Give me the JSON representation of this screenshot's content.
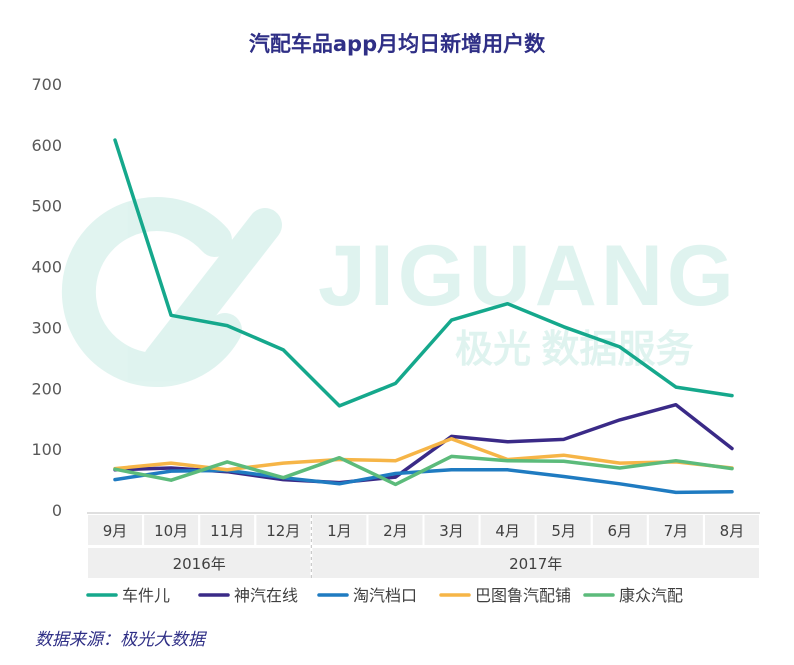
{
  "chart_data": {
    "type": "line",
    "title": "汽配车品app月均日新增用户数",
    "ylim": [
      0,
      700
    ],
    "yticks": [
      0,
      100,
      200,
      300,
      400,
      500,
      600,
      700
    ],
    "categories": [
      "9月",
      "10月",
      "11月",
      "12月",
      "1月",
      "2月",
      "3月",
      "4月",
      "5月",
      "6月",
      "7月",
      "8月"
    ],
    "year_groups": [
      {
        "label": "2016年",
        "span": 4
      },
      {
        "label": "2017年",
        "span": 8
      }
    ],
    "series": [
      {
        "name": "车件儿",
        "color": "#15a88c",
        "values": [
          608,
          320,
          303,
          263,
          171,
          208,
          312,
          339,
          301,
          268,
          202,
          188
        ]
      },
      {
        "name": "神汽在线",
        "color": "#3a2a87",
        "values": [
          66,
          69,
          63,
          50,
          45,
          54,
          121,
          112,
          116,
          148,
          173,
          101
        ]
      },
      {
        "name": "淘汽档口",
        "color": "#1f7bc1",
        "values": [
          50,
          64,
          65,
          53,
          43,
          60,
          66,
          66,
          55,
          43,
          29,
          30
        ]
      },
      {
        "name": "巴图鲁汽配铺",
        "color": "#f6b547",
        "values": [
          68,
          77,
          66,
          77,
          83,
          81,
          117,
          83,
          90,
          77,
          79,
          69
        ]
      },
      {
        "name": "康众汽配",
        "color": "#5cbb7b",
        "values": [
          67,
          49,
          79,
          53,
          86,
          42,
          88,
          81,
          80,
          69,
          81,
          68
        ]
      }
    ],
    "legend_position": "bottom",
    "grid": false
  },
  "watermark": {
    "brand": "JIGUANG",
    "tagline": "极光 数据服务"
  },
  "source_label": "数据来源：极光大数据"
}
